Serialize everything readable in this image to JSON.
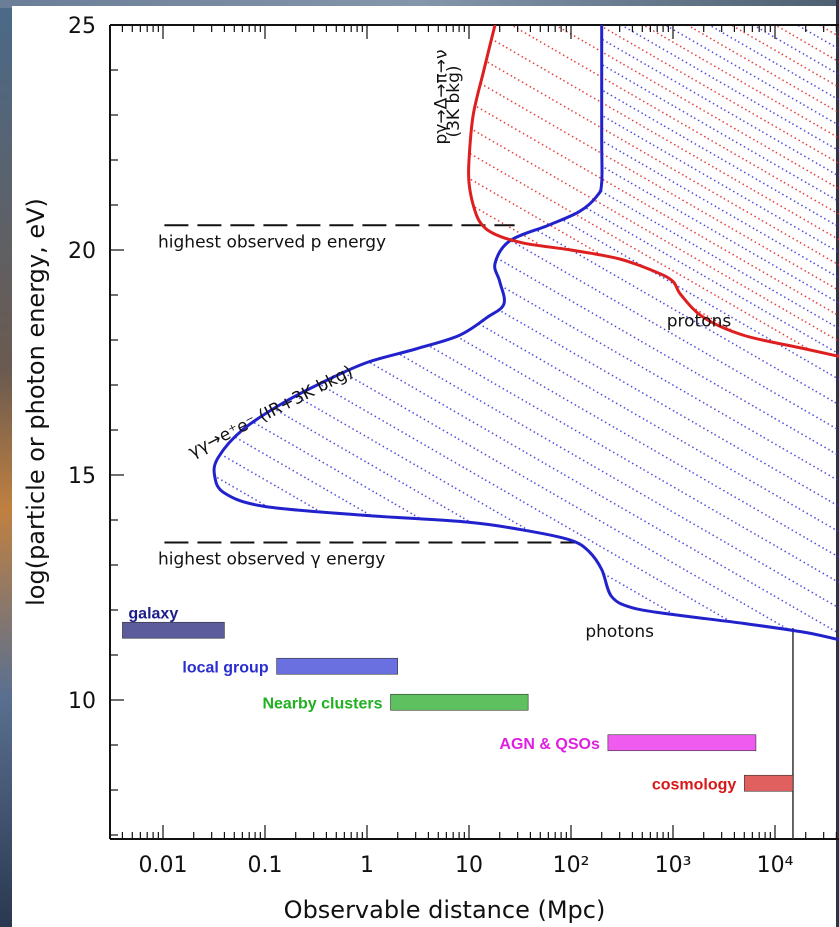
{
  "chart_data": {
    "type": "line",
    "title": "",
    "xlabel": "Observable distance (Mpc)",
    "ylabel": "log(particle or photon energy, eV)",
    "x_scale": "log",
    "xlim": [
      0.0025,
      50000
    ],
    "ylim": [
      7,
      25
    ],
    "x_ticks": [
      {
        "value": 0.01,
        "label": "0.01"
      },
      {
        "value": 0.1,
        "label": "0.1"
      },
      {
        "value": 1,
        "label": "1"
      },
      {
        "value": 10,
        "label": "10"
      },
      {
        "value": 100,
        "label": "10²"
      },
      {
        "value": 1000,
        "label": "10³"
      },
      {
        "value": 10000,
        "label": "10⁴"
      }
    ],
    "y_ticks": [
      {
        "value": 10,
        "label": "10"
      },
      {
        "value": 15,
        "label": "15"
      },
      {
        "value": 20,
        "label": "20"
      },
      {
        "value": 25,
        "label": "25"
      }
    ],
    "series": [
      {
        "name": "photons",
        "color": "#2222cc",
        "points": [
          [
            50000,
            11.3
          ],
          [
            20000,
            11.5
          ],
          [
            5000,
            11.7
          ],
          [
            1000,
            11.9
          ],
          [
            400,
            12.05
          ],
          [
            250,
            12.3
          ],
          [
            200,
            12.9
          ],
          [
            150,
            13.3
          ],
          [
            100,
            13.55
          ],
          [
            40,
            13.75
          ],
          [
            10,
            13.95
          ],
          [
            1,
            14.1
          ],
          [
            0.1,
            14.3
          ],
          [
            0.04,
            14.6
          ],
          [
            0.032,
            15.0
          ],
          [
            0.035,
            15.4
          ],
          [
            0.06,
            16.0
          ],
          [
            0.15,
            16.6
          ],
          [
            0.4,
            17.1
          ],
          [
            1.0,
            17.5
          ],
          [
            3,
            17.8
          ],
          [
            8,
            18.1
          ],
          [
            15,
            18.5
          ],
          [
            22,
            18.8
          ],
          [
            20,
            19.3
          ],
          [
            18,
            19.7
          ],
          [
            25,
            20.2
          ],
          [
            60,
            20.55
          ],
          [
            120,
            20.85
          ],
          [
            180,
            21.2
          ],
          [
            200,
            21.5
          ],
          [
            200,
            22.5
          ],
          [
            200,
            25.0
          ]
        ]
      },
      {
        "name": "protons",
        "color": "#dd1f1f",
        "points": [
          [
            18,
            25.0
          ],
          [
            14,
            24.0
          ],
          [
            11,
            23.0
          ],
          [
            10,
            22.0
          ],
          [
            10,
            21.5
          ],
          [
            11,
            21.0
          ],
          [
            13,
            20.6
          ],
          [
            18,
            20.35
          ],
          [
            35,
            20.15
          ],
          [
            100,
            20.0
          ],
          [
            300,
            19.8
          ],
          [
            700,
            19.5
          ],
          [
            1000,
            19.3
          ],
          [
            1200,
            19.0
          ],
          [
            2000,
            18.5
          ],
          [
            5000,
            18.1
          ],
          [
            20000,
            17.8
          ],
          [
            50000,
            17.6
          ]
        ]
      }
    ],
    "reference_lines": [
      {
        "label": "highest observed p energy",
        "y": 20.55,
        "x_from": 0.004,
        "x_to": 25
      },
      {
        "label": "highest observed γ energy",
        "y": 13.5,
        "x_from": 0.004,
        "x_to": 100
      }
    ],
    "vertical_line": {
      "x": 15000,
      "y_from": 7,
      "y_to": 11.6
    },
    "annotations": [
      {
        "text": "pγ→Δ→π→ν",
        "x": 6,
        "y": 23.4,
        "rotation": -90
      },
      {
        "text": "(3K bkg)",
        "x": 8,
        "y": 23.3,
        "rotation": -90
      },
      {
        "text": "γγ→e⁺e⁻ (IR+3K bkg)",
        "x": 0.12,
        "y": 16.3,
        "rotation": -27
      },
      {
        "text": "protons",
        "x": 1800,
        "y": 18.3,
        "rotation": 0
      },
      {
        "text": "photons",
        "x": 300,
        "y": 11.4,
        "rotation": 0
      }
    ],
    "scale_bars": [
      {
        "label": "galaxy",
        "x_from": 0.004,
        "x_to": 0.04,
        "y": 11.55,
        "color": "#5c5c9c",
        "label_color": "#1c1c8a"
      },
      {
        "label": "local group",
        "x_from": 0.13,
        "x_to": 2.0,
        "y": 10.75,
        "color": "#6a70e0",
        "label_color": "#2a2ed0"
      },
      {
        "label": "Nearby clusters",
        "x_from": 1.7,
        "x_to": 38,
        "y": 9.95,
        "color": "#5fc060",
        "label_color": "#20b020"
      },
      {
        "label": "AGN & QSOs",
        "x_from": 230,
        "x_to": 6500,
        "y": 9.05,
        "color": "#ef5aef",
        "label_color": "#e020e0"
      },
      {
        "label": "cosmology",
        "x_from": 5000,
        "x_to": 15000,
        "y": 8.15,
        "color": "#e06060",
        "label_color": "#d81818"
      }
    ]
  }
}
